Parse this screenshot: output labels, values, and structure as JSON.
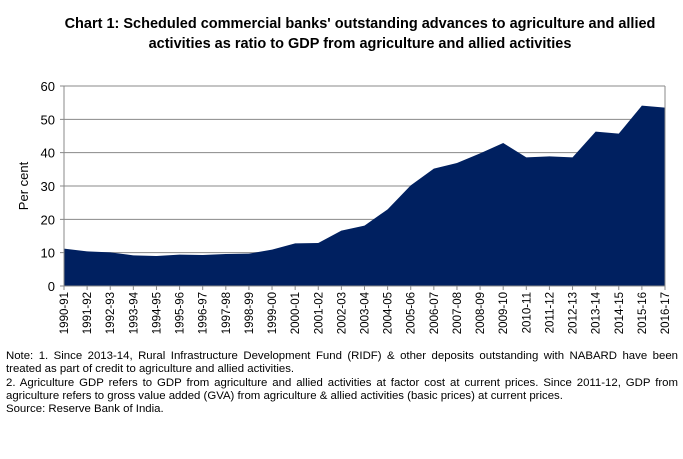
{
  "chart_data": {
    "type": "area",
    "title": "Chart 1: Scheduled commercial banks' outstanding advances to agriculture and allied activities as ratio to GDP from agriculture and allied activities",
    "xlabel": "",
    "ylabel": "Per cent",
    "ylim": [
      0,
      60
    ],
    "yticks": [
      "0",
      "10",
      "20",
      "30",
      "40",
      "50",
      "60"
    ],
    "grid": true,
    "color": "#002060",
    "categories": [
      "1990-91",
      "1991-92",
      "1992-93",
      "1993-94",
      "1994-95",
      "1995-96",
      "1996-97",
      "1997-98",
      "1998-99",
      "1999-00",
      "2000-01",
      "2001-02",
      "2002-03",
      "2003-04",
      "2004-05",
      "2005-06",
      "2006-07",
      "2007-08",
      "2008-09",
      "2009-10",
      "2010-11",
      "2011-12",
      "2012-13",
      "2013-14",
      "2014-15",
      "2015-16",
      "2016-17"
    ],
    "values": [
      11.2,
      10.4,
      10.1,
      9.2,
      9.0,
      9.4,
      9.3,
      9.6,
      9.7,
      10.9,
      12.8,
      12.9,
      16.6,
      18.1,
      23.0,
      30.2,
      35.2,
      36.9,
      39.8,
      42.9,
      38.6,
      38.9,
      38.6,
      46.3,
      45.7,
      54.1,
      53.5
    ]
  },
  "notes": [
    "Note: 1. Since 2013-14, Rural Infrastructure Development Fund (RIDF) & other deposits outstanding with NABARD have been treated as part of credit to agriculture and allied activities.",
    "2. Agriculture GDP refers to GDP from agriculture and allied activities at factor cost at current prices. Since 2011-12, GDP from agriculture refers to gross value added (GVA) from agriculture & allied activities (basic prices) at current prices.",
    "Source: Reserve Bank of India."
  ]
}
